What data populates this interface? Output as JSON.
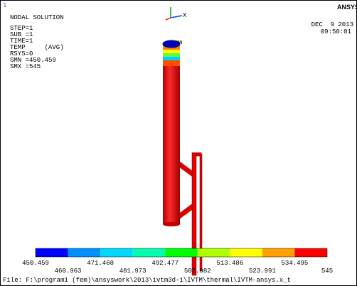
{
  "window_number": "1",
  "header": {
    "title": "NODAL SOLUTION",
    "lines": [
      "STEP=1",
      "SUB =1",
      "TIME=1",
      "TEMP     (AVG)",
      "RSYS=0",
      "SMN =450.459",
      "SMX =545"
    ],
    "brand": "ANSYS",
    "date": "DEC  9 2013",
    "time": "09:50:01"
  },
  "triad": {
    "x": "X"
  },
  "marker": "MN",
  "legend": {
    "colors": [
      "#0000ff",
      "#0090ff",
      "#00d8ff",
      "#00ffb0",
      "#00ff00",
      "#b0ff00",
      "#ffff00",
      "#ffa000",
      "#ff0000"
    ],
    "labels": [
      "450.459",
      "460.963",
      "471.468",
      "481.973",
      "492.477",
      "502.982",
      "513.486",
      "523.991",
      "534.495",
      "545"
    ]
  },
  "footer": "File: F:\\program1 (fem)\\ansyswork\\2013\\ivtm3d-1\\IVTM\\thermal\\IVTM-ansys.x_t"
}
